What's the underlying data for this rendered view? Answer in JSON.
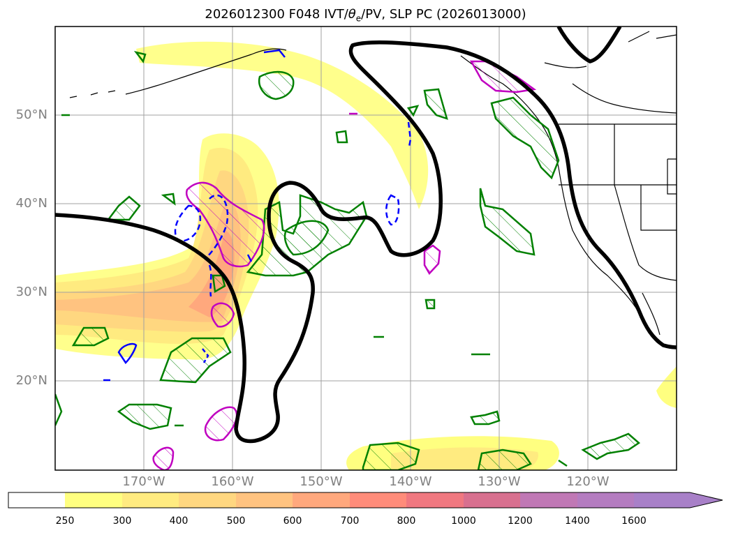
{
  "title": "2026012300 F048 IVT/θe/PV, SLP PC (2026013000)",
  "title_parts": {
    "prefix": "2026012300 F048 IVT/",
    "theta": "θ",
    "sub": "e",
    "suffix": "/PV, SLP PC (2026013000)"
  },
  "lat_labels": [
    "50°N",
    "40°N",
    "30°N",
    "20°N"
  ],
  "lon_labels": [
    "170°W",
    "160°W",
    "150°W",
    "140°W",
    "130°W",
    "120°W"
  ],
  "colorbar": {
    "ticks": [
      "250",
      "300",
      "400",
      "500",
      "600",
      "700",
      "800",
      "1000",
      "1200",
      "1400",
      "1600"
    ],
    "colors": [
      "#ffffff",
      "#ffff80",
      "#ffeb80",
      "#ffd780",
      "#ffc380",
      "#ffa87d",
      "#ff8c7a",
      "#f07880",
      "#d8708f",
      "#c078b5",
      "#a880c8"
    ]
  },
  "legend_colors": {
    "slp_contour": "#000000",
    "pv_green": "#008000",
    "pv_magenta": "#c000c0",
    "theta_blue": "#0000ff",
    "grid": "#a0a0a0",
    "coast": "#000000"
  }
}
